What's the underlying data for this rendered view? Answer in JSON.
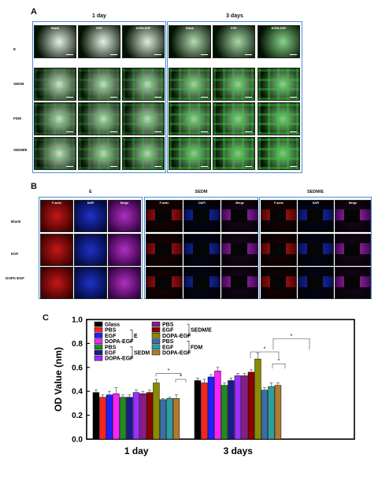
{
  "panelA": {
    "label": "A",
    "headers": [
      "1 day",
      "3 days"
    ],
    "col_labels": [
      "Blank",
      "EGF",
      "DOPA-EGF"
    ],
    "row_labels": [
      "E",
      "SEDM",
      "FDM",
      "SEDM/E"
    ]
  },
  "panelB": {
    "label": "B",
    "groups": [
      "E",
      "SEDM",
      "SEDM/E"
    ],
    "col_labels": [
      "F-actin",
      "DAPI",
      "Merge"
    ],
    "row_labels": [
      "Blank",
      "EGF",
      "DOPA-EGF"
    ]
  },
  "panelC": {
    "label": "C"
  },
  "chart_data": {
    "type": "bar",
    "ylabel": "OD Value (nm)",
    "ylim": [
      0.0,
      1.0
    ],
    "yticks": [
      "0.0",
      "0.2",
      "0.4",
      "0.6",
      "0.8",
      "1.0"
    ],
    "categories": [
      "1 day",
      "3 days"
    ],
    "series": [
      {
        "name": "Glass",
        "color": "#000000",
        "values": [
          0.39,
          0.49
        ]
      },
      {
        "name": "PBS",
        "color": "#ff2020",
        "values": [
          0.35,
          0.47
        ]
      },
      {
        "name": "EGF",
        "color": "#2020ff",
        "values": [
          0.37,
          0.52
        ]
      },
      {
        "name": "DOPA-EGF",
        "color": "#ff20ff",
        "values": [
          0.38,
          0.57
        ]
      },
      {
        "name": "PBS",
        "color": "#228b22",
        "values": [
          0.35,
          0.45
        ]
      },
      {
        "name": "EGF",
        "color": "#1a1a8a",
        "values": [
          0.35,
          0.49
        ]
      },
      {
        "name": "DOPA-EGF",
        "color": "#9b30ff",
        "values": [
          0.39,
          0.53
        ]
      },
      {
        "name": "PBS",
        "color": "#8b1a8b",
        "values": [
          0.38,
          0.53
        ]
      },
      {
        "name": "EGF",
        "color": "#8b0000",
        "values": [
          0.39,
          0.56
        ]
      },
      {
        "name": "DOPA-EGF",
        "color": "#8b8b00",
        "values": [
          0.47,
          0.67
        ]
      },
      {
        "name": "PBS",
        "color": "#3a6ea5",
        "values": [
          0.33,
          0.41
        ]
      },
      {
        "name": "EGF",
        "color": "#2aa0a0",
        "values": [
          0.34,
          0.44
        ]
      },
      {
        "name": "DOPA-EGF",
        "color": "#b07a30",
        "values": [
          0.34,
          0.45
        ]
      }
    ],
    "errors": [
      [
        0.02,
        0.02
      ],
      [
        0.02,
        0.03
      ],
      [
        0.03,
        0.02
      ],
      [
        0.05,
        0.03
      ],
      [
        0.02,
        0.02
      ],
      [
        0.02,
        0.02
      ],
      [
        0.02,
        0.02
      ],
      [
        0.02,
        0.02
      ],
      [
        0.02,
        0.02
      ],
      [
        0.03,
        0.05
      ],
      [
        0.01,
        0.02
      ],
      [
        0.01,
        0.03
      ],
      [
        0.03,
        0.02
      ]
    ],
    "legend_groups": [
      {
        "label": "E",
        "members": [
          1,
          2,
          3
        ]
      },
      {
        "label": "SEDM",
        "members": [
          4,
          5,
          6
        ]
      },
      {
        "label": "SEDM/E",
        "members": [
          7,
          8,
          9
        ]
      },
      {
        "label": "FDM",
        "members": [
          10,
          11,
          12
        ]
      }
    ],
    "significance": "*"
  },
  "colors": {
    "frame": "#4a8fd4",
    "green_cell": "#2aa02a",
    "red_cell": "#d42020",
    "blue_cell": "#2030d0"
  }
}
